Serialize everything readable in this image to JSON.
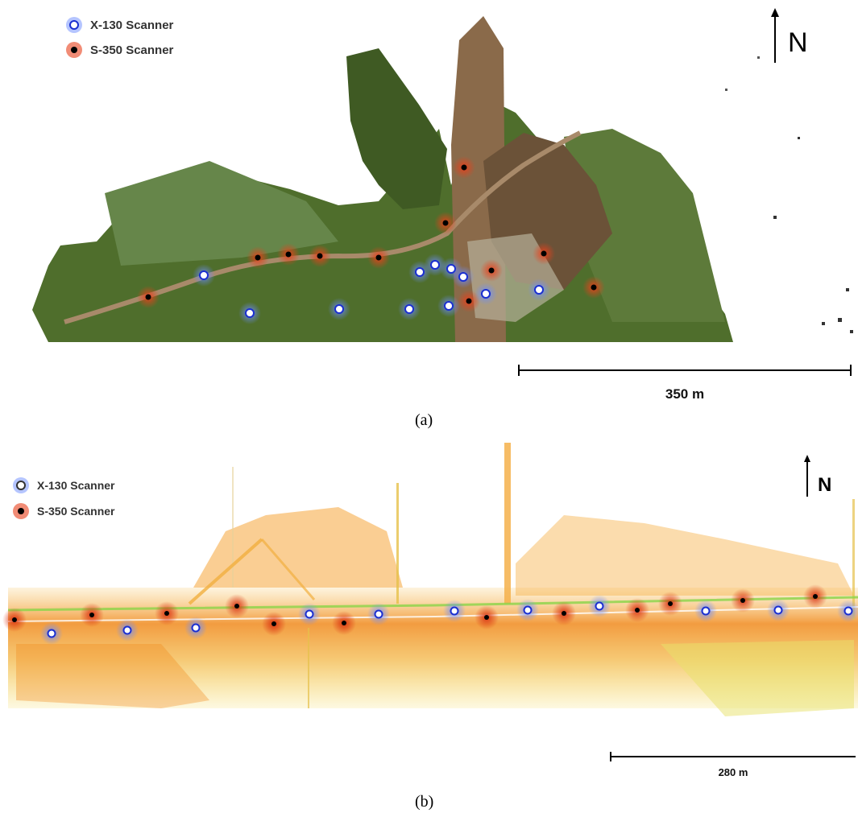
{
  "panels": [
    {
      "caption": "(a)",
      "legend": {
        "x130_label": "X-130 Scanner",
        "s350_label": "S-350 Scanner"
      },
      "north_label": "N",
      "scale_label": "350 m",
      "colors": {
        "x130_fill": "#ffffff",
        "x130_halo": "#6b8cff",
        "x130_ring": "#1a2fd0",
        "s350_fill": "#000000",
        "s350_halo": "#e8401a",
        "terrain_green": "#4c6b2a",
        "terrain_brown": "#7a5a3a"
      }
    },
    {
      "caption": "(b)",
      "legend": {
        "x130_label": "X-130 Scanner",
        "s350_label": "S-350 Scanner"
      },
      "north_label": "N",
      "scale_label": "280 m",
      "colors": {
        "x130_fill": "#ffffff",
        "x130_halo": "#6b8cff",
        "x130_ring": "#1a2fd0",
        "s350_fill": "#000000",
        "s350_halo": "#e8401a",
        "cloud_orange": "#f08a1e",
        "cloud_yellow": "#f2d23a",
        "cloud_green": "#9ad84a"
      }
    }
  ]
}
